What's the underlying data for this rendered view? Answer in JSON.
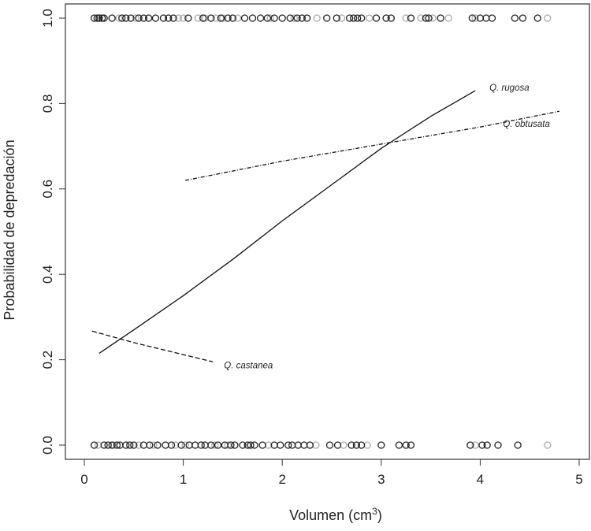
{
  "chart_data": {
    "type": "scatter",
    "title": "",
    "xlabel": "Volumen (cm",
    "xlabel_sup": "3",
    "xlabel_close": ")",
    "ylabel": "Probabilidad de depredación",
    "xlim": [
      0,
      5
    ],
    "ylim": [
      0,
      1
    ],
    "x_ticks": [
      "0",
      "1",
      "2",
      "3",
      "4",
      "5"
    ],
    "y_ticks": [
      "0.0",
      "0.2",
      "0.4",
      "0.6",
      "0.8",
      "1.0"
    ],
    "grid": false,
    "legend": "none",
    "observations_top": {
      "black": [
        0.1,
        0.13,
        0.15,
        0.18,
        0.2,
        0.28,
        0.38,
        0.42,
        0.47,
        0.55,
        0.6,
        0.65,
        0.72,
        0.8,
        0.85,
        0.9,
        1.05,
        1.2,
        1.28,
        1.38,
        1.45,
        1.5,
        1.62,
        1.7,
        1.78,
        1.85,
        1.92,
        2.0,
        2.08,
        2.15,
        2.2,
        2.25,
        2.45,
        2.55,
        2.68,
        2.72,
        2.76,
        2.8,
        2.95,
        3.05,
        3.1,
        3.3,
        3.45,
        3.48,
        3.6,
        3.92,
        4.0,
        4.06,
        4.12,
        4.35,
        4.43,
        4.58
      ],
      "gray": [
        0.35,
        0.52,
        0.95,
        1.0,
        1.15,
        1.22,
        1.33,
        1.4,
        1.55,
        1.88,
        2.12,
        2.35,
        2.6,
        2.88,
        3.25,
        3.4,
        3.52,
        3.68,
        3.95,
        4.68
      ]
    },
    "observations_bottom": {
      "black": [
        0.1,
        0.2,
        0.24,
        0.28,
        0.33,
        0.36,
        0.42,
        0.46,
        0.5,
        0.6,
        0.66,
        0.74,
        0.82,
        0.88,
        0.98,
        1.06,
        1.12,
        1.18,
        1.22,
        1.28,
        1.35,
        1.42,
        1.48,
        1.52,
        1.6,
        1.65,
        1.68,
        1.72,
        1.8,
        1.92,
        1.98,
        2.06,
        2.1,
        2.16,
        2.22,
        2.28,
        2.48,
        2.56,
        2.7,
        2.75,
        2.8,
        3.0,
        3.18,
        3.25,
        3.3,
        3.9,
        4.02,
        4.07,
        4.18,
        4.38
      ],
      "gray": [
        0.14,
        0.3,
        0.55,
        0.7,
        0.92,
        1.02,
        1.32,
        1.45,
        1.86,
        2.34,
        2.62,
        2.86,
        3.95,
        4.68
      ]
    },
    "series": [
      {
        "name": "Q. rugosa",
        "style": "solid",
        "x": [
          0.15,
          0.5,
          1.0,
          1.5,
          2.0,
          2.5,
          3.0,
          3.5,
          3.95
        ],
        "y": [
          0.215,
          0.27,
          0.35,
          0.435,
          0.525,
          0.61,
          0.695,
          0.77,
          0.83
        ]
      },
      {
        "name": "Q. obtusata",
        "style": "dashdot",
        "x": [
          1.02,
          2.0,
          3.0,
          4.0,
          4.8
        ],
        "y": [
          0.62,
          0.665,
          0.705,
          0.745,
          0.782
        ]
      },
      {
        "name": "Q. castanea",
        "style": "dashed",
        "x": [
          0.08,
          0.5,
          1.0,
          1.3
        ],
        "y": [
          0.267,
          0.24,
          0.212,
          0.195
        ]
      }
    ],
    "colors": {
      "black_points": "#222222",
      "gray_points": "#aaaaaa",
      "lines": "#111111"
    }
  }
}
